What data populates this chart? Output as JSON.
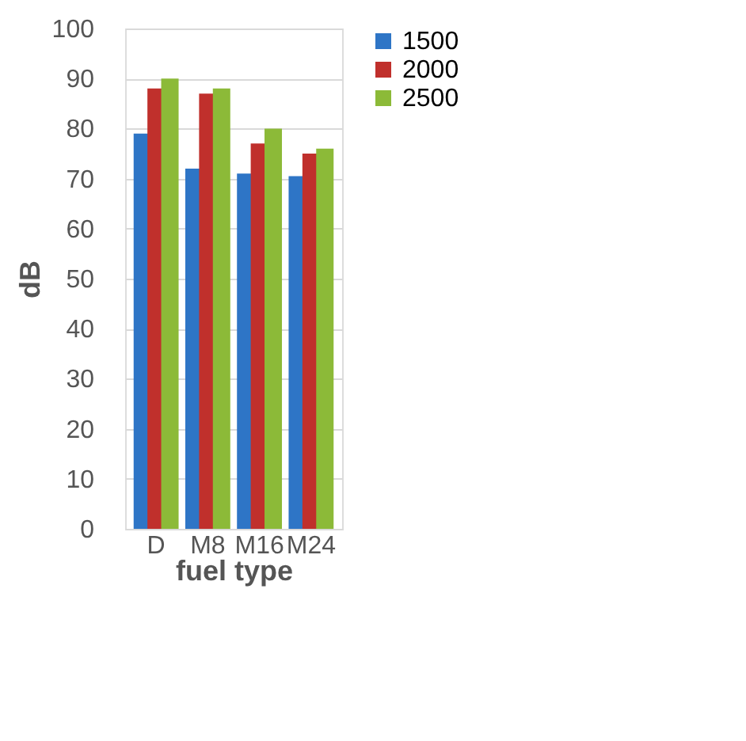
{
  "chart_data": {
    "type": "bar",
    "xlabel": "fuel type",
    "ylabel": "dB",
    "categories": [
      "D",
      "M8",
      "M16",
      "M24"
    ],
    "series": [
      {
        "name": "1500",
        "color": "#2e75c6",
        "values": [
          79,
          72,
          71,
          70.5
        ]
      },
      {
        "name": "2000",
        "color": "#c0302c",
        "values": [
          88,
          87,
          77,
          75
        ]
      },
      {
        "name": "2500",
        "color": "#8cba38",
        "values": [
          90,
          88,
          80,
          76
        ]
      }
    ],
    "ylim": [
      0,
      100
    ],
    "yticks": [
      0,
      10,
      20,
      30,
      40,
      50,
      60,
      70,
      80,
      90,
      100
    ],
    "grid": "y",
    "legend": "right"
  }
}
